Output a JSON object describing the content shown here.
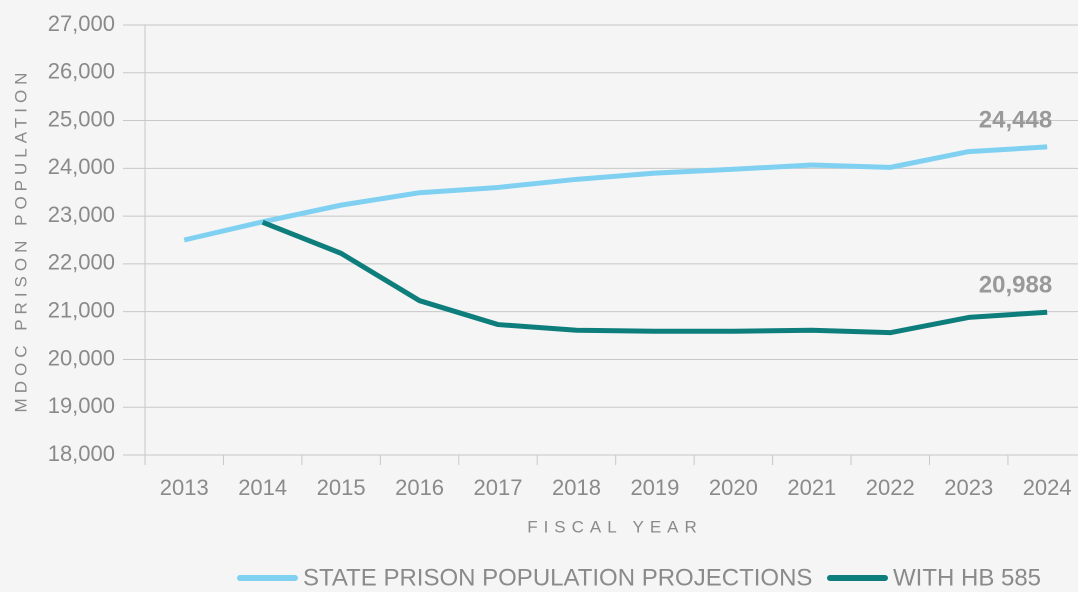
{
  "chart_data": {
    "type": "line",
    "categories": [
      "2013",
      "2014",
      "2015",
      "2016",
      "2017",
      "2018",
      "2019",
      "2020",
      "2021",
      "2022",
      "2023",
      "2024"
    ],
    "series": [
      {
        "name": "STATE PRISON POPULATION PROJECTIONS",
        "color": "#80d1f1",
        "values": [
          22500,
          22880,
          23230,
          23490,
          23600,
          23770,
          23900,
          23980,
          24070,
          24020,
          24350,
          24448
        ],
        "value_labels": [
          null,
          null,
          null,
          null,
          null,
          null,
          null,
          null,
          null,
          null,
          null,
          "24,448"
        ]
      },
      {
        "name": "WITH HB 585",
        "color": "#0e7e7c",
        "values": [
          null,
          22870,
          22220,
          21230,
          20730,
          20610,
          20590,
          20590,
          20610,
          20560,
          20880,
          20988
        ],
        "value_labels": [
          null,
          null,
          null,
          null,
          null,
          null,
          null,
          null,
          null,
          null,
          null,
          "20,988"
        ]
      }
    ],
    "ylim": [
      18000,
      27000
    ],
    "yticks": [
      {
        "value": 18000,
        "label": "18,000"
      },
      {
        "value": 19000,
        "label": "19,000"
      },
      {
        "value": 20000,
        "label": "20,000"
      },
      {
        "value": 21000,
        "label": "21,000"
      },
      {
        "value": 22000,
        "label": "22,000"
      },
      {
        "value": 23000,
        "label": "23,000"
      },
      {
        "value": 24000,
        "label": "24,000"
      },
      {
        "value": 25000,
        "label": "25,000"
      },
      {
        "value": 26000,
        "label": "26,000"
      },
      {
        "value": 27000,
        "label": "27,000"
      }
    ],
    "ylabel": "MDOC PRISON POPULATION",
    "xlabel": "FISCAL YEAR",
    "grid": true
  }
}
